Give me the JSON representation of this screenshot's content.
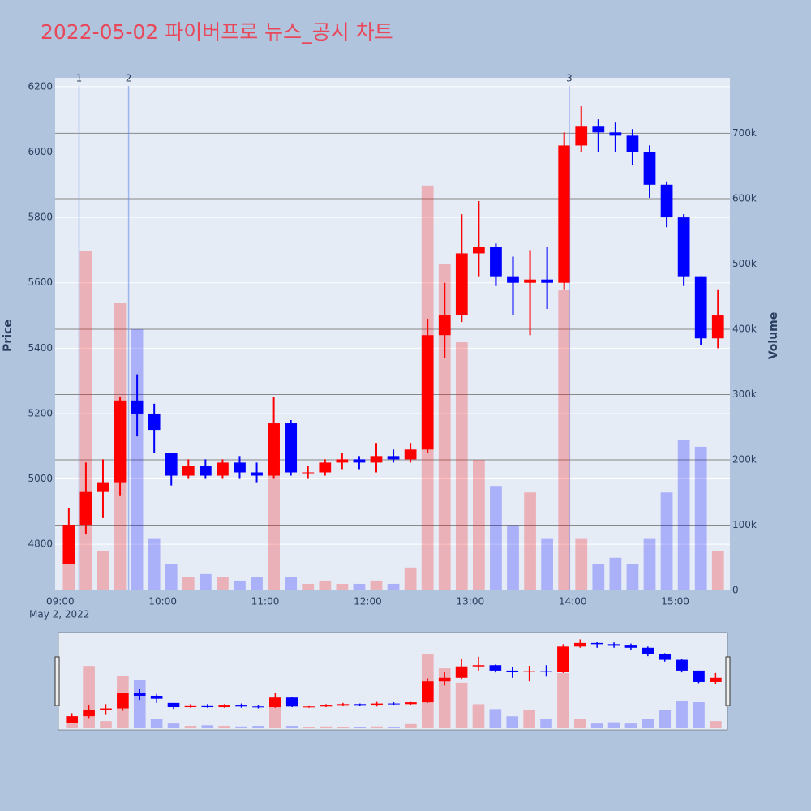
{
  "chart_data": {
    "type": "candlestick",
    "title": "2022-05-02 파이버프로 뉴스_공시 차트",
    "x_date_label": "May 2, 2022",
    "y_title": "Price",
    "y2_title": "Volume",
    "x": [
      "09:00",
      "09:10",
      "09:20",
      "09:30",
      "09:40",
      "09:50",
      "10:00",
      "10:10",
      "10:20",
      "10:30",
      "10:40",
      "10:50",
      "11:00",
      "11:10",
      "11:20",
      "11:30",
      "11:40",
      "11:50",
      "12:00",
      "12:10",
      "12:20",
      "12:30",
      "12:40",
      "12:50",
      "13:00",
      "13:10",
      "13:20",
      "13:30",
      "13:40",
      "13:50",
      "14:00",
      "14:10",
      "14:20",
      "14:30",
      "14:40",
      "14:50",
      "15:00",
      "15:10",
      "15:20"
    ],
    "open": [
      4740,
      4860,
      4960,
      4990,
      5240,
      5200,
      5080,
      5010,
      5040,
      5010,
      5050,
      5020,
      5010,
      5170,
      5020,
      5020,
      5050,
      5060,
      5050,
      5070,
      5060,
      5090,
      5440,
      5500,
      5690,
      5710,
      5620,
      5600,
      5610,
      5600,
      6020,
      6080,
      6060,
      6050,
      6000,
      5900,
      5800,
      5620,
      5430
    ],
    "high": [
      4910,
      5050,
      5060,
      5250,
      5320,
      5230,
      5080,
      5060,
      5060,
      5060,
      5070,
      5050,
      5250,
      5180,
      5040,
      5060,
      5080,
      5070,
      5110,
      5090,
      5110,
      5490,
      5600,
      5810,
      5850,
      5720,
      5680,
      5700,
      5710,
      6060,
      6140,
      6100,
      6090,
      6070,
      6020,
      5910,
      5810,
      5620,
      5580
    ],
    "low": [
      4740,
      4830,
      4880,
      4950,
      5130,
      5080,
      4980,
      5000,
      5000,
      5000,
      5000,
      4990,
      5000,
      5010,
      5000,
      5010,
      5030,
      5030,
      5020,
      5050,
      5050,
      5080,
      5370,
      5480,
      5620,
      5590,
      5500,
      5440,
      5520,
      5580,
      6000,
      6000,
      6000,
      5960,
      5860,
      5770,
      5590,
      5410,
      5400
    ],
    "close": [
      4860,
      4960,
      4990,
      5240,
      5200,
      5150,
      5010,
      5040,
      5010,
      5050,
      5020,
      5010,
      5170,
      5020,
      5020,
      5050,
      5060,
      5050,
      5070,
      5060,
      5090,
      5440,
      5500,
      5690,
      5710,
      5620,
      5600,
      5610,
      5600,
      6020,
      6080,
      6060,
      6050,
      6000,
      5900,
      5800,
      5620,
      5430,
      5500
    ],
    "volume": [
      40000,
      520000,
      60000,
      440000,
      400000,
      80000,
      40000,
      20000,
      25000,
      20000,
      15000,
      20000,
      200000,
      20000,
      10000,
      15000,
      10000,
      10000,
      15000,
      10000,
      35000,
      620000,
      500000,
      380000,
      200000,
      160000,
      100000,
      150000,
      80000,
      460000,
      80000,
      40000,
      50000,
      40000,
      80000,
      150000,
      230000,
      220000,
      60000
    ],
    "increasing_color": "#ff0000",
    "decreasing_color": "#0000ff",
    "xlim": [
      "08:57",
      "15:32"
    ],
    "xticks": [
      "09:00",
      "10:00",
      "11:00",
      "12:00",
      "13:00",
      "14:00",
      "15:00"
    ],
    "ylim": [
      4659,
      6227
    ],
    "yticks": [
      4800,
      5000,
      5200,
      5400,
      5600,
      5800,
      6000,
      6200
    ],
    "y2lim": [
      0,
      785000
    ],
    "y2ticks": [
      0,
      {
        "value": 100000,
        "label": "100k"
      },
      {
        "value": 200000,
        "label": "200k"
      },
      {
        "value": 300000,
        "label": "300k"
      },
      {
        "value": 400000,
        "label": "400k"
      },
      {
        "value": 500000,
        "label": "500k"
      },
      {
        "value": 600000,
        "label": "600k"
      },
      {
        "value": 700000,
        "label": "700k"
      }
    ],
    "annotations": [
      {
        "x": "09:11",
        "label": "1"
      },
      {
        "x": "09:40",
        "label": "2"
      },
      {
        "x": "13:58",
        "label": "3"
      }
    ],
    "rangeslider": true,
    "grid": true
  }
}
